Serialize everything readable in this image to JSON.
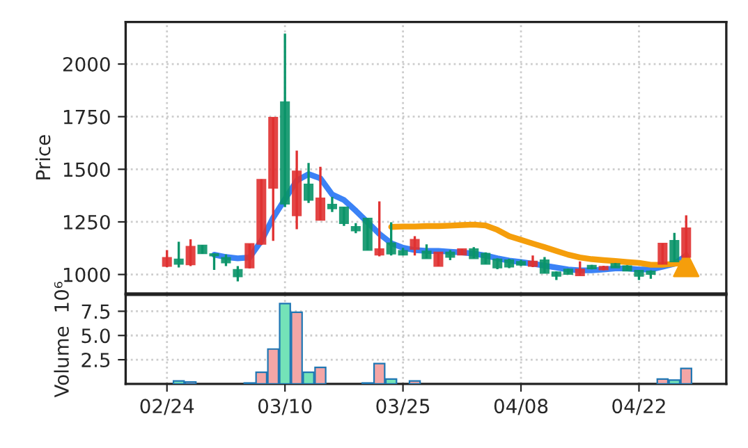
{
  "chart_data": [
    {
      "type": "candlestick",
      "ylabel": "Price",
      "grid": true,
      "tick_labels": "y",
      "categories": [
        null,
        null,
        null,
        null,
        null,
        null,
        null,
        null,
        null,
        null,
        null,
        null,
        null,
        null,
        null,
        null,
        null,
        null,
        null,
        null,
        null,
        null,
        null,
        null,
        null,
        null,
        null,
        null,
        null,
        null,
        null,
        null,
        null,
        null,
        null,
        null,
        null,
        null,
        null,
        null,
        null,
        null,
        null,
        null,
        null
      ],
      "ylim": [
        910,
        2200
      ],
      "yticks": [
        1000,
        1250,
        1500,
        1750,
        2000
      ],
      "ohlc": [
        [
          1040,
          1116,
          1035,
          1079
        ],
        [
          1072,
          1156,
          1033,
          1050
        ],
        [
          1048,
          1167,
          1040,
          1132
        ],
        [
          1138,
          1140,
          1098,
          1101
        ],
        [
          1097,
          1100,
          1022,
          1090
        ],
        [
          1079,
          1095,
          1040,
          1057
        ],
        [
          1022,
          1040,
          967,
          991
        ],
        [
          1033,
          1145,
          1028,
          1145
        ],
        [
          1145,
          1452,
          1140,
          1450
        ],
        [
          1411,
          1745,
          1160,
          1745
        ],
        [
          1819,
          2145,
          1320,
          1336
        ],
        [
          1281,
          1589,
          1215,
          1490
        ],
        [
          1428,
          1530,
          1340,
          1354
        ],
        [
          1259,
          1512,
          1259,
          1362
        ],
        [
          1332,
          1369,
          1297,
          1314
        ],
        [
          1319,
          1319,
          1231,
          1244
        ],
        [
          1226,
          1244,
          1196,
          1209
        ],
        [
          1266,
          1266,
          1116,
          1116
        ],
        [
          1094,
          1347,
          1086,
          1121
        ],
        [
          1149,
          1248,
          1090,
          1099
        ],
        [
          1112,
          1127,
          1090,
          1094
        ],
        [
          1121,
          1182,
          1090,
          1165
        ],
        [
          1110,
          1143,
          1077,
          1077
        ],
        [
          1040,
          1105,
          1040,
          1105
        ],
        [
          1105,
          1116,
          1068,
          1083
        ],
        [
          1094,
          1121,
          1094,
          1121
        ],
        [
          1121,
          1130,
          1077,
          1077
        ],
        [
          1099,
          1105,
          1050,
          1050
        ],
        [
          1072,
          1077,
          1025,
          1033
        ],
        [
          1068,
          1075,
          1030,
          1037
        ],
        [
          1060,
          1070,
          1040,
          1046
        ],
        [
          1040,
          1090,
          1035,
          1062
        ],
        [
          1068,
          1083,
          1007,
          1007
        ],
        [
          1011,
          1015,
          974,
          993
        ],
        [
          1024,
          1028,
          1002,
          1002
        ],
        [
          996,
          1062,
          996,
          1024
        ],
        [
          1042,
          1046,
          1024,
          1029
        ],
        [
          1024,
          1042,
          1020,
          1037
        ],
        [
          1050,
          1055,
          1033,
          1033
        ],
        [
          1040,
          1044,
          1018,
          1018
        ],
        [
          1018,
          1022,
          974,
          993
        ],
        [
          1015,
          1020,
          980,
          1002
        ],
        [
          1050,
          1147,
          1050,
          1147
        ],
        [
          1160,
          1198,
          1062,
          1062
        ],
        [
          1083,
          1281,
          1083,
          1220
        ]
      ],
      "colors": [
        "#e03131",
        "#0a9469",
        "#e03131",
        "#0a9469",
        "#0a9469",
        "#0a9469",
        "#0a9469",
        "#e03131",
        "#e03131",
        "#e03131",
        "#0a9469",
        "#e03131",
        "#0a9469",
        "#e03131",
        "#0a9469",
        "#0a9469",
        "#0a9469",
        "#0a9469",
        "#e03131",
        "#0a9469",
        "#0a9469",
        "#e03131",
        "#0a9469",
        "#e03131",
        "#0a9469",
        "#e03131",
        "#0a9469",
        "#0a9469",
        "#0a9469",
        "#0a9469",
        "#0a9469",
        "#e03131",
        "#0a9469",
        "#0a9469",
        "#0a9469",
        "#e03131",
        "#0a9469",
        "#e03131",
        "#0a9469",
        "#0a9469",
        "#0a9469",
        "#0a9469",
        "#e03131",
        "#0a9469",
        "#e03131"
      ],
      "series": [
        {
          "type": "line",
          "color": "#3b82f6",
          "values": [
            null,
            null,
            null,
            null,
            1094,
            1083,
            1077,
            1081,
            1160,
            1270,
            1358,
            1446,
            1477,
            1457,
            1380,
            1354,
            1303,
            1248,
            1193,
            1149,
            1127,
            1116,
            1112,
            1112,
            1108,
            1105,
            1099,
            1090,
            1077,
            1066,
            1059,
            1051,
            1042,
            1033,
            1024,
            1020,
            1020,
            1024,
            1029,
            1029,
            1024,
            1024,
            1037,
            1051,
            1090
          ]
        },
        {
          "type": "line",
          "color": "#f59e0b",
          "values": [
            null,
            null,
            null,
            null,
            null,
            null,
            null,
            null,
            null,
            null,
            null,
            null,
            null,
            null,
            null,
            null,
            null,
            null,
            null,
            1226,
            1228,
            1228,
            1230,
            1230,
            1232,
            1235,
            1237,
            1233,
            1212,
            1182,
            1165,
            1147,
            1130,
            1112,
            1094,
            1081,
            1073,
            1068,
            1064,
            1059,
            1055,
            1046,
            1046,
            1051,
            1055
          ]
        },
        {
          "type": "scatter",
          "color": "#f59e0b",
          "marker": "triangle",
          "values": [
            null,
            null,
            null,
            null,
            null,
            null,
            null,
            null,
            null,
            null,
            null,
            null,
            null,
            null,
            null,
            null,
            null,
            null,
            null,
            null,
            null,
            null,
            null,
            null,
            null,
            null,
            null,
            null,
            null,
            null,
            null,
            null,
            null,
            null,
            null,
            null,
            null,
            null,
            null,
            null,
            null,
            null,
            null,
            null,
            1050
          ]
        }
      ]
    },
    {
      "type": "bar",
      "ylabel": "Volume  10⁶",
      "grid": true,
      "categories": [
        "02/24",
        null,
        null,
        null,
        null,
        null,
        null,
        null,
        null,
        null,
        "03/10",
        null,
        null,
        null,
        null,
        null,
        null,
        null,
        null,
        null,
        "03/25",
        null,
        null,
        null,
        null,
        null,
        null,
        null,
        null,
        null,
        "04/08",
        null,
        null,
        null,
        null,
        null,
        null,
        null,
        null,
        null,
        "04/22",
        null,
        null,
        null,
        null
      ],
      "ylim": [
        0,
        9.2
      ],
      "yticks": [
        2.5,
        {
          "value": 5,
          "label": "5.0"
        },
        7.5
      ],
      "values": [
        null,
        0.3,
        0.2,
        null,
        null,
        null,
        null,
        0.1,
        1.2,
        3.6,
        8.3,
        7.4,
        1.2,
        1.7,
        null,
        null,
        null,
        0.1,
        2.1,
        0.5,
        null,
        0.3,
        null,
        null,
        null,
        null,
        null,
        null,
        null,
        null,
        null,
        null,
        null,
        null,
        null,
        null,
        null,
        null,
        null,
        null,
        null,
        null,
        0.5,
        0.4,
        1.6
      ],
      "colors": [
        "#f4a6a6",
        "#74e3b8",
        "#f4a6a6",
        "#74e3b8",
        "#74e3b8",
        "#74e3b8",
        "#74e3b8",
        "#f4a6a6",
        "#f4a6a6",
        "#f4a6a6",
        "#74e3b8",
        "#f4a6a6",
        "#74e3b8",
        "#f4a6a6",
        "#74e3b8",
        "#74e3b8",
        "#74e3b8",
        "#74e3b8",
        "#f4a6a6",
        "#74e3b8",
        "#74e3b8",
        "#f4a6a6",
        "#74e3b8",
        "#f4a6a6",
        "#74e3b8",
        "#f4a6a6",
        "#74e3b8",
        "#74e3b8",
        "#74e3b8",
        "#74e3b8",
        "#74e3b8",
        "#f4a6a6",
        "#74e3b8",
        "#74e3b8",
        "#74e3b8",
        "#f4a6a6",
        "#74e3b8",
        "#f4a6a6",
        "#74e3b8",
        "#74e3b8",
        "#74e3b8",
        "#74e3b8",
        "#f4a6a6",
        "#74e3b8",
        "#f4a6a6"
      ]
    }
  ]
}
